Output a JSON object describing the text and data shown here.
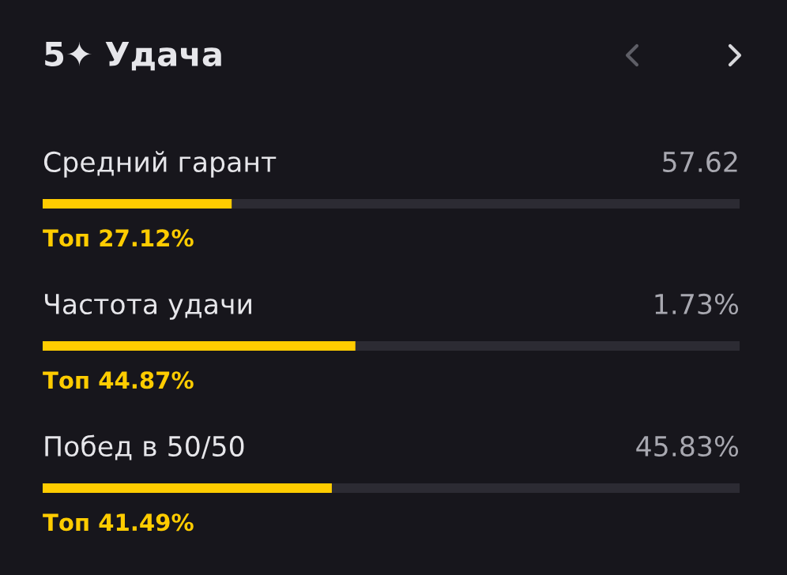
{
  "chart_data": {
    "type": "bar",
    "orientation": "horizontal",
    "title": "5✦ Удача",
    "categories": [
      "Средний гарант",
      "Частота удачи",
      "Побед в 50/50"
    ],
    "values": [
      27.12,
      44.87,
      41.49
    ],
    "value_labels": [
      "Топ 27.12%",
      "Топ 44.87%",
      "Топ 41.49%"
    ],
    "color": "#ffcc00",
    "xlim": [
      0,
      100
    ],
    "tick_labels": false,
    "annotations": [
      "57.62",
      "1.73%",
      "45.83%"
    ]
  }
}
